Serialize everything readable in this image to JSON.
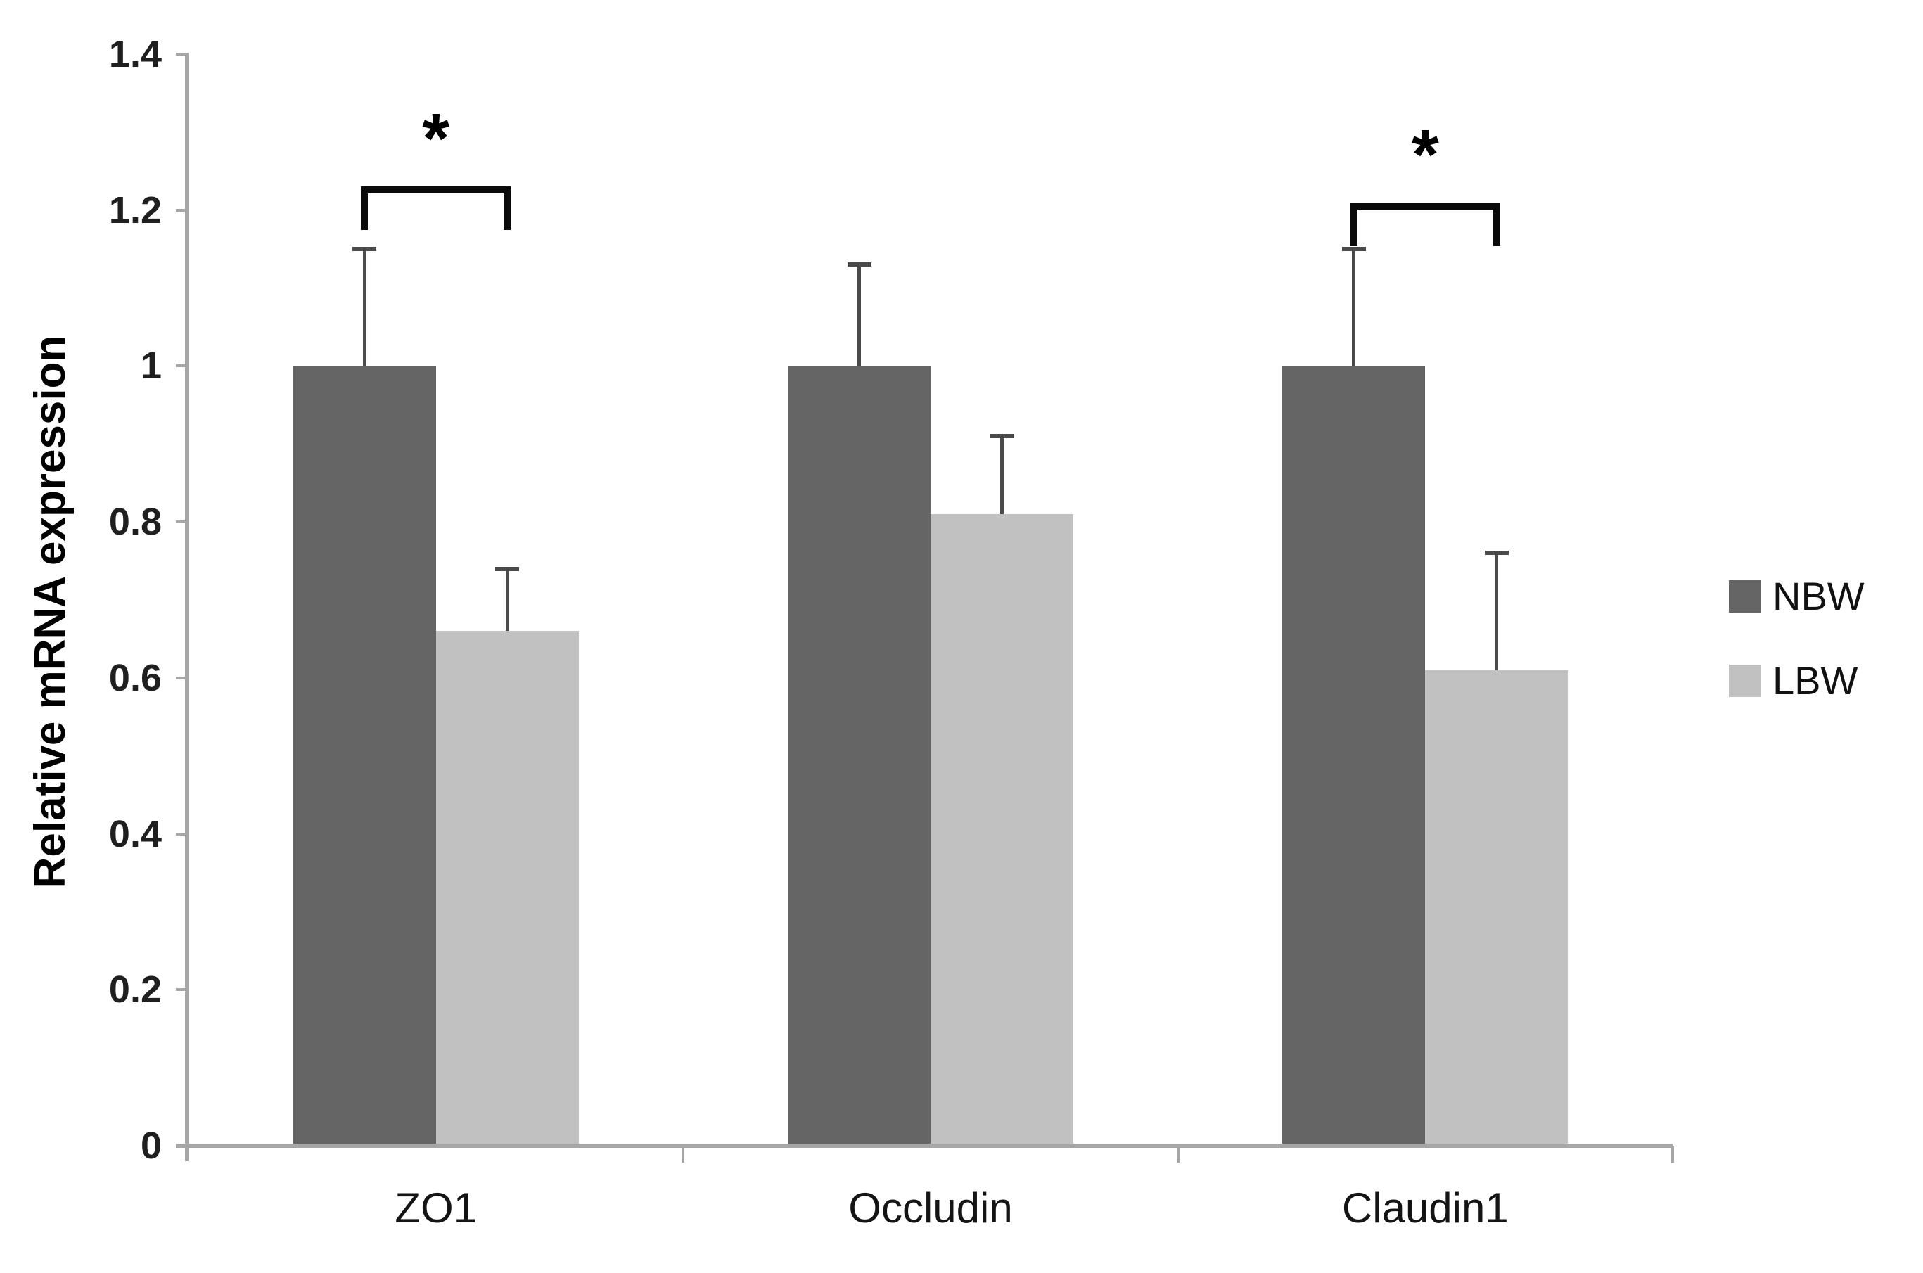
{
  "figure": {
    "background": "#ffffff"
  },
  "chart_data": {
    "type": "bar",
    "title": "",
    "ylabel": "Relative mRNA expression",
    "xlabel": "",
    "categories": [
      "ZO1",
      "Occludin",
      "Claudin1"
    ],
    "series": [
      {
        "name": "NBW",
        "color": "#656565",
        "values": [
          1.0,
          1.0,
          1.0
        ],
        "error_plus": [
          0.15,
          0.13,
          0.15
        ]
      },
      {
        "name": "LBW",
        "color": "#c1c1c1",
        "values": [
          0.66,
          0.81,
          0.61
        ],
        "error_plus": [
          0.08,
          0.1,
          0.15
        ]
      }
    ],
    "ylim": [
      0,
      1.4
    ],
    "yticks": [
      0,
      0.2,
      0.4,
      0.6,
      0.8,
      1,
      1.2,
      1.4
    ],
    "grid": false,
    "legend_position": "right",
    "significance": [
      {
        "category_index": 0,
        "label": "*",
        "bracket_top": 1.23
      },
      {
        "category_index": 2,
        "label": "*",
        "bracket_top": 1.21
      }
    ],
    "axis_color": "#a6a6a6",
    "error_bar_color": "#4a4a4a",
    "text_color": "#000000"
  }
}
